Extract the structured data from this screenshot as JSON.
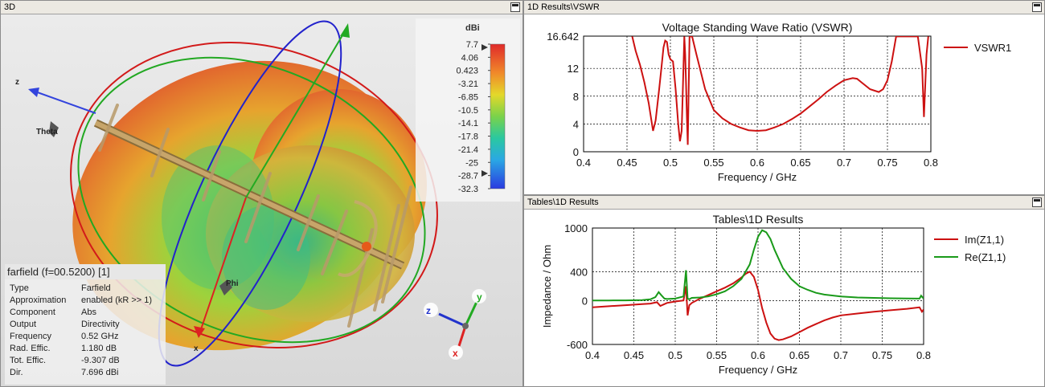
{
  "view3d": {
    "title": "3D",
    "colorbar": {
      "unit": "dBi",
      "ticks": [
        "7.7",
        "4.06",
        "0.423",
        "-3.21",
        "-6.85",
        "-10.5",
        "-14.1",
        "-17.8",
        "-21.4",
        "-25",
        "-28.7",
        "-32.3"
      ]
    },
    "axis_labels": {
      "z": "z",
      "theta": "Theta",
      "phi": "Phi",
      "x": "x"
    },
    "triad": {
      "z": "z",
      "y": "y",
      "x": "x"
    },
    "info": {
      "header": "farfield (f=00.5200) [1]",
      "rows": [
        {
          "k": "Type",
          "v": "Farfield"
        },
        {
          "k": "Approximation",
          "v": "enabled (kR >> 1)"
        },
        {
          "k": "Component",
          "v": "Abs"
        },
        {
          "k": "Output",
          "v": "Directivity"
        },
        {
          "k": "Frequency",
          "v": "0.52 GHz"
        },
        {
          "k": "Rad. Effic.",
          "v": "1.180 dB"
        },
        {
          "k": "Tot. Effic.",
          "v": "-9.307 dB"
        },
        {
          "k": "Dir.",
          "v": "7.696 dBi"
        }
      ]
    }
  },
  "vswr_panel": {
    "tab_title": "1D Results\\VSWR",
    "chart_data": {
      "type": "line",
      "title": "Voltage Standing Wave Ratio (VSWR)",
      "xlabel": "Frequency / GHz",
      "ylabel": "",
      "xlim": [
        0.4,
        0.8
      ],
      "ylim": [
        0,
        16.642
      ],
      "xticks": [
        "0.4",
        "0.45",
        "0.5",
        "0.55",
        "0.6",
        "0.65",
        "0.7",
        "0.75",
        "0.8"
      ],
      "yticks": [
        {
          "v": 0,
          "t": "0"
        },
        {
          "v": 4,
          "t": "4"
        },
        {
          "v": 8,
          "t": "8"
        },
        {
          "v": 12,
          "t": "12"
        },
        {
          "v": 16.642,
          "t": "16.642"
        }
      ],
      "grid": true,
      "legend": "right",
      "series": [
        {
          "name": "VSWR1",
          "color": "#cc1111",
          "x": [
            0.456,
            0.46,
            0.465,
            0.47,
            0.475,
            0.48,
            0.483,
            0.487,
            0.49,
            0.492,
            0.494,
            0.496,
            0.498,
            0.5,
            0.503,
            0.506,
            0.509,
            0.511,
            0.513,
            0.515,
            0.516,
            0.517,
            0.518,
            0.519,
            0.52,
            0.522,
            0.525,
            0.53,
            0.54,
            0.55,
            0.56,
            0.57,
            0.58,
            0.59,
            0.6,
            0.61,
            0.62,
            0.63,
            0.64,
            0.65,
            0.66,
            0.67,
            0.68,
            0.69,
            0.7,
            0.71,
            0.715,
            0.72,
            0.73,
            0.74,
            0.745,
            0.75,
            0.755,
            0.76,
            0.765,
            0.77,
            0.775,
            0.78,
            0.785,
            0.79,
            0.792,
            0.795,
            0.797
          ],
          "y": [
            16.6,
            14.5,
            12.5,
            10,
            7,
            3,
            4.5,
            9,
            12.5,
            15,
            16,
            15.8,
            14,
            13.3,
            13,
            9,
            4,
            1.5,
            3,
            12,
            16.6,
            14,
            10,
            5,
            1,
            16.6,
            16.6,
            14,
            9,
            6,
            4.8,
            4,
            3.5,
            3.1,
            3.0,
            3.1,
            3.5,
            4,
            4.7,
            5.5,
            6.5,
            7.5,
            8.6,
            9.5,
            10.3,
            10.6,
            10.5,
            10.0,
            9,
            8.6,
            9,
            10.3,
            13,
            16.6,
            16.6,
            16.6,
            16.6,
            16.6,
            16.6,
            12,
            5,
            14,
            16.6
          ]
        }
      ]
    }
  },
  "imp_panel": {
    "tab_title": "Tables\\1D Results",
    "chart_data": {
      "type": "line",
      "title": "Tables\\1D Results",
      "xlabel": "Frequency / GHz",
      "ylabel": "Impedance / Ohm",
      "xlim": [
        0.4,
        0.8
      ],
      "ylim": [
        -600,
        1000
      ],
      "xticks": [
        "0.4",
        "0.45",
        "0.5",
        "0.55",
        "0.6",
        "0.65",
        "0.7",
        "0.75",
        "0.8"
      ],
      "yticks": [
        {
          "v": -600,
          "t": "-600"
        },
        {
          "v": 0,
          "t": "0"
        },
        {
          "v": 400,
          "t": "400"
        },
        {
          "v": 1000,
          "t": "1000"
        }
      ],
      "grid": true,
      "legend": "right",
      "series": [
        {
          "name": "Im(Z1,1)",
          "color": "#cc1111",
          "x": [
            0.4,
            0.42,
            0.44,
            0.46,
            0.47,
            0.478,
            0.482,
            0.486,
            0.49,
            0.5,
            0.51,
            0.513,
            0.515,
            0.517,
            0.52,
            0.53,
            0.54,
            0.55,
            0.56,
            0.57,
            0.58,
            0.585,
            0.59,
            0.595,
            0.6,
            0.605,
            0.61,
            0.615,
            0.62,
            0.625,
            0.63,
            0.64,
            0.65,
            0.66,
            0.67,
            0.68,
            0.69,
            0.7,
            0.72,
            0.74,
            0.76,
            0.78,
            0.795,
            0.798,
            0.8
          ],
          "y": [
            -90,
            -75,
            -60,
            -45,
            -38,
            -20,
            -70,
            -50,
            -30,
            -10,
            5,
            200,
            -200,
            -60,
            -30,
            30,
            80,
            130,
            180,
            240,
            320,
            370,
            400,
            330,
            150,
            -100,
            -300,
            -450,
            -520,
            -540,
            -530,
            -490,
            -430,
            -370,
            -320,
            -270,
            -230,
            -200,
            -175,
            -150,
            -130,
            -110,
            -90,
            -150,
            -120
          ]
        },
        {
          "name": "Re(Z1,1)",
          "color": "#1a9a1a",
          "x": [
            0.4,
            0.42,
            0.44,
            0.46,
            0.47,
            0.476,
            0.48,
            0.483,
            0.487,
            0.49,
            0.5,
            0.51,
            0.513,
            0.515,
            0.517,
            0.52,
            0.53,
            0.54,
            0.55,
            0.56,
            0.57,
            0.58,
            0.59,
            0.595,
            0.6,
            0.605,
            0.61,
            0.615,
            0.62,
            0.63,
            0.64,
            0.65,
            0.66,
            0.67,
            0.68,
            0.7,
            0.72,
            0.74,
            0.76,
            0.78,
            0.795,
            0.797,
            0.8
          ],
          "y": [
            5,
            5,
            6,
            10,
            20,
            50,
            120,
            80,
            30,
            25,
            30,
            60,
            420,
            30,
            20,
            40,
            45,
            60,
            90,
            130,
            200,
            300,
            500,
            700,
            880,
            970,
            940,
            850,
            700,
            450,
            300,
            200,
            150,
            110,
            85,
            60,
            45,
            40,
            35,
            32,
            30,
            70,
            30
          ]
        }
      ]
    }
  }
}
